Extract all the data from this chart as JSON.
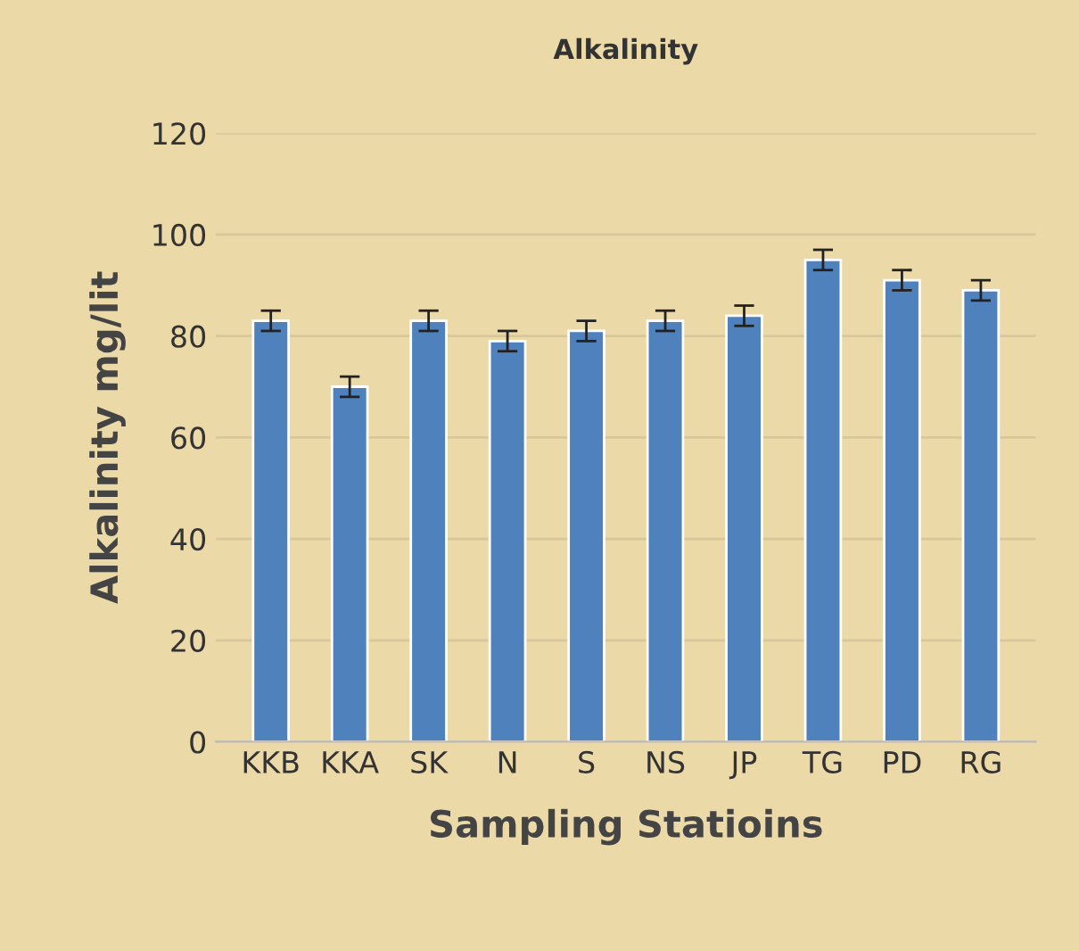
{
  "chart_data": {
    "type": "bar",
    "title": "Alkalinity",
    "xlabel": "Sampling Statioins",
    "ylabel": "Alkalinity mg/lit",
    "categories": [
      "KKB",
      "KKA",
      "SK",
      "N",
      "S",
      "NS",
      "JP",
      "TG",
      "PD",
      "RG"
    ],
    "values": [
      83,
      70,
      83,
      79,
      81,
      83,
      84,
      95,
      91,
      89
    ],
    "errors": [
      2,
      2,
      2,
      2,
      2,
      2,
      2,
      2,
      2,
      2
    ],
    "color": "#4f81bd",
    "ylim": [
      0,
      120
    ],
    "yticks": [
      0,
      20,
      40,
      60,
      80,
      100,
      120
    ],
    "grid": "y"
  }
}
